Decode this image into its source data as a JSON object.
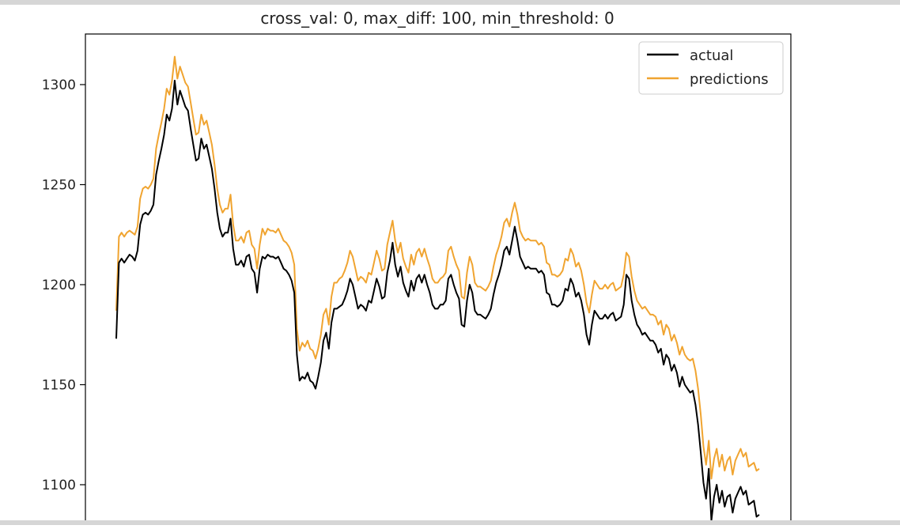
{
  "chart_data": {
    "type": "line",
    "title": "cross_val: 0, max_diff: 100, min_threshold: 0",
    "xlabel": "",
    "ylabel": "",
    "ylim": [
      1074,
      1326
    ],
    "yticks": [
      1100,
      1150,
      1200,
      1250,
      1300
    ],
    "grid": false,
    "legend_position": "top-right",
    "series": [
      {
        "name": "actual",
        "color": "#000000",
        "values": [
          1173,
          1211,
          1213,
          1211,
          1213,
          1215,
          1214,
          1212,
          1217,
          1230,
          1235,
          1236,
          1235,
          1237,
          1240,
          1255,
          1262,
          1268,
          1275,
          1285,
          1282,
          1288,
          1302,
          1290,
          1297,
          1293,
          1289,
          1287,
          1278,
          1270,
          1262,
          1263,
          1273,
          1268,
          1270,
          1264,
          1258,
          1248,
          1236,
          1228,
          1224,
          1226,
          1226,
          1233,
          1218,
          1210,
          1210,
          1212,
          1209,
          1214,
          1215,
          1208,
          1206,
          1196,
          1208,
          1214,
          1213,
          1215,
          1214,
          1214,
          1213,
          1214,
          1211,
          1208,
          1207,
          1205,
          1202,
          1196,
          1165,
          1152,
          1154,
          1153,
          1156,
          1152,
          1151,
          1148,
          1154,
          1161,
          1172,
          1176,
          1168,
          1181,
          1188,
          1188,
          1189,
          1190,
          1193,
          1197,
          1203,
          1200,
          1194,
          1188,
          1190,
          1189,
          1187,
          1192,
          1191,
          1197,
          1203,
          1199,
          1193,
          1194,
          1206,
          1212,
          1221,
          1210,
          1204,
          1209,
          1201,
          1197,
          1194,
          1202,
          1197,
          1203,
          1205,
          1201,
          1205,
          1200,
          1196,
          1190,
          1188,
          1188,
          1190,
          1190,
          1192,
          1203,
          1205,
          1200,
          1196,
          1193,
          1180,
          1179,
          1192,
          1200,
          1196,
          1187,
          1185,
          1185,
          1184,
          1183,
          1185,
          1188,
          1195,
          1201,
          1205,
          1210,
          1217,
          1219,
          1215,
          1222,
          1229,
          1222,
          1214,
          1211,
          1208,
          1209,
          1208,
          1208,
          1208,
          1206,
          1207,
          1205,
          1196,
          1195,
          1190,
          1190,
          1189,
          1190,
          1192,
          1198,
          1197,
          1203,
          1200,
          1194,
          1196,
          1192,
          1185,
          1175,
          1170,
          1180,
          1187,
          1185,
          1183,
          1183,
          1185,
          1183,
          1185,
          1186,
          1182,
          1183,
          1184,
          1190,
          1205,
          1203,
          1192,
          1185,
          1180,
          1178,
          1175,
          1176,
          1174,
          1172,
          1172,
          1170,
          1166,
          1168,
          1160,
          1165,
          1163,
          1157,
          1160,
          1156,
          1149,
          1154,
          1150,
          1148,
          1146,
          1147,
          1140,
          1130,
          1116,
          1101,
          1093,
          1108,
          1082,
          1094,
          1100,
          1091,
          1097,
          1089,
          1094,
          1095,
          1086,
          1093,
          1096,
          1099,
          1095,
          1097,
          1090,
          1091,
          1092,
          1084,
          1085
        ]
      },
      {
        "name": "predictions",
        "color": "#f0a430",
        "values": [
          1187,
          1224,
          1226,
          1224,
          1226,
          1227,
          1226,
          1225,
          1229,
          1243,
          1248,
          1249,
          1248,
          1250,
          1253,
          1268,
          1275,
          1281,
          1288,
          1298,
          1295,
          1302,
          1314,
          1303,
          1309,
          1305,
          1301,
          1299,
          1291,
          1283,
          1275,
          1276,
          1285,
          1280,
          1282,
          1276,
          1270,
          1260,
          1248,
          1240,
          1236,
          1238,
          1238,
          1245,
          1230,
          1222,
          1222,
          1224,
          1221,
          1226,
          1227,
          1220,
          1218,
          1208,
          1220,
          1228,
          1225,
          1228,
          1227,
          1227,
          1226,
          1228,
          1225,
          1222,
          1221,
          1219,
          1216,
          1210,
          1178,
          1167,
          1171,
          1169,
          1172,
          1168,
          1167,
          1163,
          1168,
          1175,
          1185,
          1188,
          1180,
          1194,
          1201,
          1201,
          1203,
          1204,
          1207,
          1211,
          1217,
          1214,
          1208,
          1202,
          1204,
          1203,
          1201,
          1206,
          1205,
          1211,
          1217,
          1213,
          1207,
          1208,
          1220,
          1226,
          1232,
          1222,
          1216,
          1221,
          1213,
          1209,
          1206,
          1215,
          1210,
          1216,
          1218,
          1214,
          1218,
          1213,
          1209,
          1203,
          1201,
          1201,
          1203,
          1204,
          1206,
          1217,
          1219,
          1214,
          1210,
          1207,
          1194,
          1193,
          1206,
          1214,
          1210,
          1201,
          1199,
          1199,
          1198,
          1197,
          1199,
          1202,
          1209,
          1215,
          1219,
          1224,
          1231,
          1233,
          1229,
          1236,
          1241,
          1235,
          1227,
          1224,
          1222,
          1223,
          1222,
          1222,
          1222,
          1220,
          1221,
          1219,
          1211,
          1210,
          1205,
          1205,
          1204,
          1205,
          1207,
          1213,
          1212,
          1218,
          1215,
          1209,
          1211,
          1207,
          1200,
          1191,
          1186,
          1195,
          1202,
          1200,
          1198,
          1198,
          1200,
          1198,
          1200,
          1201,
          1197,
          1198,
          1199,
          1205,
          1216,
          1214,
          1204,
          1197,
          1192,
          1190,
          1188,
          1189,
          1187,
          1185,
          1185,
          1184,
          1180,
          1182,
          1175,
          1180,
          1178,
          1172,
          1175,
          1171,
          1165,
          1169,
          1165,
          1163,
          1162,
          1163,
          1157,
          1148,
          1135,
          1119,
          1110,
          1122,
          1103,
          1113,
          1118,
          1109,
          1115,
          1107,
          1112,
          1114,
          1105,
          1112,
          1115,
          1118,
          1114,
          1116,
          1109,
          1110,
          1111,
          1107,
          1108
        ]
      }
    ]
  }
}
